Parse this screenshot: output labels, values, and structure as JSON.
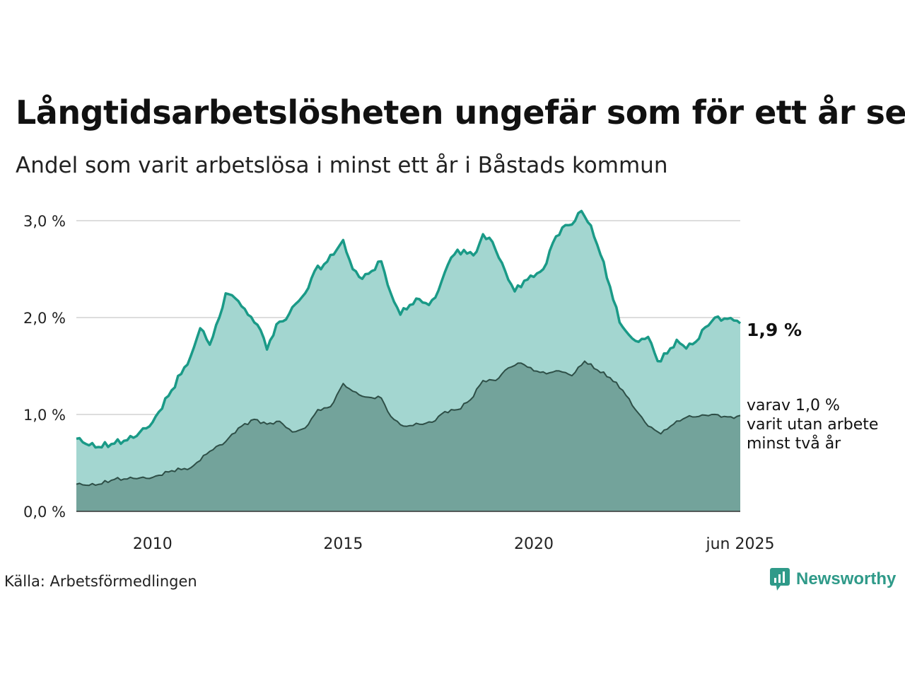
{
  "title": "Långtidsarbetslösheten ungefär som för ett år sen",
  "subtitle": "Andel som varit arbetslösa i minst ett år i Båstads kommun",
  "source": "Källa: Arbetsförmedlingen",
  "brand": {
    "name": "Newsworthy",
    "icon": "newsworthy-logo-icon"
  },
  "colors": {
    "total_line": "#1a9a87",
    "total_fill": "#a3d6d0",
    "sub_line": "#2e4f47",
    "sub_fill": "#6f9e96",
    "grid": "#dddddd"
  },
  "chart_data": {
    "type": "area",
    "x_start": "2008-01",
    "x_end": "2025-06",
    "x_ticks": [
      {
        "date": "2010-01",
        "label": "2010"
      },
      {
        "date": "2015-01",
        "label": "2015"
      },
      {
        "date": "2020-01",
        "label": "2020"
      },
      {
        "date": "2025-06",
        "label": "jun 2025"
      }
    ],
    "ylim": [
      0,
      3.0
    ],
    "y_ticks": [
      {
        "value": 0,
        "label": "0,0 %"
      },
      {
        "value": 1,
        "label": "1,0 %"
      },
      {
        "value": 2,
        "label": "2,0 %"
      },
      {
        "value": 3,
        "label": "3,0 %"
      }
    ],
    "grid": true,
    "end_label": "1,9 %",
    "sub_label_lines": [
      "varav 1,0 %",
      "varit utan arbete",
      "minst två år"
    ],
    "series": [
      {
        "key": "total",
        "points": [
          [
            "2008-01",
            0.75
          ],
          [
            "2008-07",
            0.66
          ],
          [
            "2009-01",
            0.7
          ],
          [
            "2009-07",
            0.76
          ],
          [
            "2010-01",
            0.92
          ],
          [
            "2010-07",
            1.25
          ],
          [
            "2011-01",
            1.6
          ],
          [
            "2011-04",
            1.89
          ],
          [
            "2011-07",
            1.72
          ],
          [
            "2011-10",
            2.0
          ],
          [
            "2011-12",
            2.25
          ],
          [
            "2012-03",
            2.2
          ],
          [
            "2012-07",
            2.03
          ],
          [
            "2012-11",
            1.87
          ],
          [
            "2013-01",
            1.67
          ],
          [
            "2013-04",
            1.93
          ],
          [
            "2013-07",
            1.98
          ],
          [
            "2013-10",
            2.14
          ],
          [
            "2014-01",
            2.25
          ],
          [
            "2014-04",
            2.48
          ],
          [
            "2014-07",
            2.55
          ],
          [
            "2014-10",
            2.65
          ],
          [
            "2015-01",
            2.8
          ],
          [
            "2015-04",
            2.5
          ],
          [
            "2015-07",
            2.4
          ],
          [
            "2015-10",
            2.48
          ],
          [
            "2016-01",
            2.58
          ],
          [
            "2016-04",
            2.25
          ],
          [
            "2016-07",
            2.03
          ],
          [
            "2016-10",
            2.13
          ],
          [
            "2017-01",
            2.19
          ],
          [
            "2017-04",
            2.13
          ],
          [
            "2017-07",
            2.28
          ],
          [
            "2017-10",
            2.55
          ],
          [
            "2018-01",
            2.7
          ],
          [
            "2018-04",
            2.66
          ],
          [
            "2018-07",
            2.68
          ],
          [
            "2018-09",
            2.86
          ],
          [
            "2018-12",
            2.78
          ],
          [
            "2019-04",
            2.48
          ],
          [
            "2019-07",
            2.27
          ],
          [
            "2019-10",
            2.38
          ],
          [
            "2020-01",
            2.42
          ],
          [
            "2020-04",
            2.5
          ],
          [
            "2020-07",
            2.77
          ],
          [
            "2020-10",
            2.93
          ],
          [
            "2021-01",
            2.96
          ],
          [
            "2021-04",
            3.1
          ],
          [
            "2021-07",
            2.95
          ],
          [
            "2021-10",
            2.65
          ],
          [
            "2022-01",
            2.32
          ],
          [
            "2022-04",
            1.95
          ],
          [
            "2022-07",
            1.82
          ],
          [
            "2022-10",
            1.75
          ],
          [
            "2023-01",
            1.8
          ],
          [
            "2023-04",
            1.55
          ],
          [
            "2023-07",
            1.63
          ],
          [
            "2023-10",
            1.77
          ],
          [
            "2024-01",
            1.68
          ],
          [
            "2024-04",
            1.75
          ],
          [
            "2024-07",
            1.9
          ],
          [
            "2024-10",
            2.0
          ],
          [
            "2025-01",
            1.99
          ],
          [
            "2025-04",
            1.97
          ],
          [
            "2025-06",
            1.94
          ]
        ]
      },
      {
        "key": "sub",
        "points": [
          [
            "2008-01",
            0.28
          ],
          [
            "2008-07",
            0.27
          ],
          [
            "2009-01",
            0.33
          ],
          [
            "2009-07",
            0.34
          ],
          [
            "2010-01",
            0.35
          ],
          [
            "2010-07",
            0.42
          ],
          [
            "2011-01",
            0.45
          ],
          [
            "2011-07",
            0.62
          ],
          [
            "2011-12",
            0.72
          ],
          [
            "2012-04",
            0.86
          ],
          [
            "2012-09",
            0.95
          ],
          [
            "2013-01",
            0.9
          ],
          [
            "2013-05",
            0.93
          ],
          [
            "2013-09",
            0.82
          ],
          [
            "2014-01",
            0.86
          ],
          [
            "2014-05",
            1.05
          ],
          [
            "2014-09",
            1.08
          ],
          [
            "2015-01",
            1.32
          ],
          [
            "2015-04",
            1.24
          ],
          [
            "2015-08",
            1.18
          ],
          [
            "2016-01",
            1.17
          ],
          [
            "2016-04",
            0.98
          ],
          [
            "2016-08",
            0.88
          ],
          [
            "2017-01",
            0.9
          ],
          [
            "2017-05",
            0.92
          ],
          [
            "2017-09",
            1.03
          ],
          [
            "2018-01",
            1.05
          ],
          [
            "2018-05",
            1.15
          ],
          [
            "2018-09",
            1.35
          ],
          [
            "2019-01",
            1.35
          ],
          [
            "2019-05",
            1.48
          ],
          [
            "2019-09",
            1.53
          ],
          [
            "2020-01",
            1.45
          ],
          [
            "2020-05",
            1.42
          ],
          [
            "2020-09",
            1.45
          ],
          [
            "2021-01",
            1.4
          ],
          [
            "2021-05",
            1.55
          ],
          [
            "2021-09",
            1.46
          ],
          [
            "2022-01",
            1.38
          ],
          [
            "2022-05",
            1.25
          ],
          [
            "2022-09",
            1.05
          ],
          [
            "2023-01",
            0.88
          ],
          [
            "2023-05",
            0.8
          ],
          [
            "2023-09",
            0.9
          ],
          [
            "2024-01",
            0.97
          ],
          [
            "2024-05",
            0.98
          ],
          [
            "2024-09",
            1.0
          ],
          [
            "2025-01",
            0.98
          ],
          [
            "2025-04",
            0.96
          ],
          [
            "2025-06",
            0.99
          ]
        ]
      }
    ]
  }
}
